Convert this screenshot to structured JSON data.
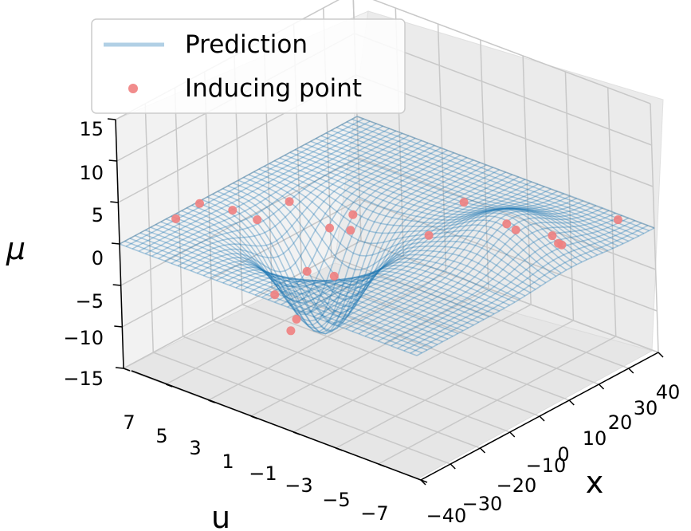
{
  "chart_data": {
    "type": "surface3d",
    "title": "",
    "xlabel": "x",
    "ylabel": "u",
    "zlabel": "μ",
    "xlim": [
      -40,
      40
    ],
    "ylim": [
      -7,
      7
    ],
    "zlim": [
      -15,
      15
    ],
    "x_ticks": [
      "−40",
      "−30",
      "−20",
      "−10",
      "0",
      "10",
      "20",
      "30",
      "40"
    ],
    "y_ticks": [
      "7",
      "5",
      "3",
      "1",
      "−1",
      "−3",
      "−5",
      "−7"
    ],
    "z_ticks": [
      "15",
      "10",
      "5",
      "0",
      "−5",
      "−10",
      "−15"
    ],
    "grid": true,
    "legend": {
      "placement": "top-left",
      "entries": [
        {
          "label": "Prediction",
          "marker": "line",
          "color": "#1f77b4"
        },
        {
          "label": "Inducing point",
          "marker": "dot",
          "color": "#f08080"
        }
      ]
    },
    "series": [
      {
        "name": "Prediction",
        "kind": "surface",
        "color": "#1f77b4",
        "description_values": {
          "grid_x": [
            -40,
            40
          ],
          "grid_u": [
            -7,
            7
          ],
          "peak": {
            "x": 12,
            "u": -4,
            "mu": 4
          },
          "trough": {
            "x": -8,
            "u": 2,
            "mu": -12
          }
        }
      },
      {
        "name": "Inducing point",
        "kind": "scatter",
        "color": "#f08080",
        "points": [
          {
            "x": -35,
            "u": 5,
            "mu": 4
          },
          {
            "x": -30,
            "u": 3,
            "mu": 6
          },
          {
            "x": -25,
            "u": 1,
            "mu": 8
          },
          {
            "x": -20,
            "u": 6,
            "mu": 2
          },
          {
            "x": -18,
            "u": -1,
            "mu": 7
          },
          {
            "x": -15,
            "u": 4,
            "mu": 1
          },
          {
            "x": -12,
            "u": 0,
            "mu": 3
          },
          {
            "x": -5,
            "u": 2,
            "mu": 0
          },
          {
            "x": 0,
            "u": -2,
            "mu": 2
          },
          {
            "x": 5,
            "u": -3,
            "mu": 6
          },
          {
            "x": 8,
            "u": -5,
            "mu": 4
          },
          {
            "x": 12,
            "u": -4,
            "mu": 3
          },
          {
            "x": 15,
            "u": -6,
            "mu": 2
          },
          {
            "x": 20,
            "u": -5,
            "mu": 1
          },
          {
            "x": 35,
            "u": -6,
            "mu": 1
          },
          {
            "x": -6,
            "u": 3,
            "mu": -6
          },
          {
            "x": -4,
            "u": 2,
            "mu": -6
          },
          {
            "x": -10,
            "u": 4,
            "mu": -9
          },
          {
            "x": -10,
            "u": 3,
            "mu": -11
          },
          {
            "x": -12,
            "u": 3,
            "mu": -12
          },
          {
            "x": 30,
            "u": -4,
            "mu": -3
          }
        ]
      }
    ]
  }
}
